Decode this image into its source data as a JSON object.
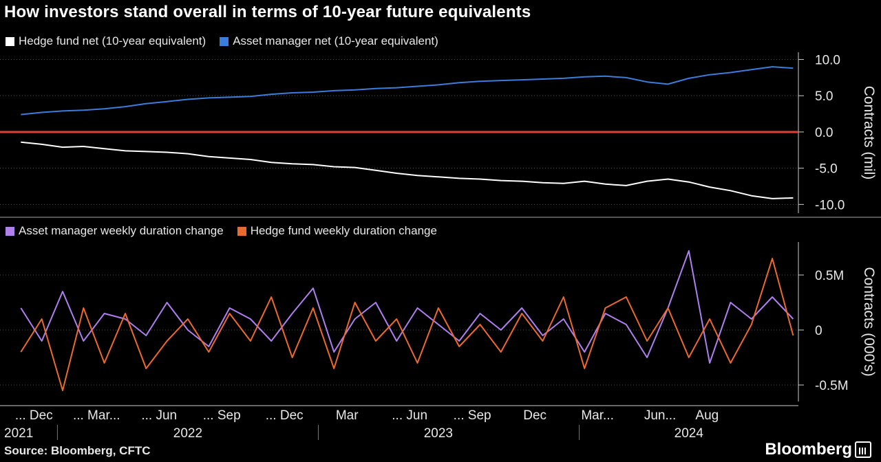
{
  "title": "How investors stand overall in terms of 10-year future equivalents",
  "source": "Source: Bloomberg, CFTC",
  "brand": "Bloomberg",
  "colors": {
    "background": "#000000",
    "hedge_net": "#ffffff",
    "asset_net": "#3b7ddd",
    "zero_line": "#e0403a",
    "asset_weekly": "#b07ff0",
    "hedge_weekly": "#ee6a2c",
    "axis": "#cfcfcf"
  },
  "chart_data": [
    {
      "type": "line",
      "title": "How investors stand overall in terms of 10-year future equivalents",
      "ylabel": "Contracts (mil)",
      "ylim": [
        -11.2,
        11
      ],
      "yticks": [
        10,
        5,
        0,
        -5,
        -10
      ],
      "ytick_labels": [
        "10.0",
        "5.0",
        "0.0",
        "-5.0",
        "-10.0"
      ],
      "zero_line": 0,
      "series": [
        {
          "name": "Hedge fund net (10-year equivalent)",
          "x": [
            0,
            4,
            8,
            12,
            16,
            20,
            24,
            28,
            32,
            36,
            40,
            44,
            48,
            52,
            56,
            60,
            64,
            68,
            72,
            76,
            80,
            84,
            88,
            92,
            96,
            100,
            104,
            108,
            112,
            116,
            120,
            124,
            128,
            132,
            136,
            140,
            144,
            148
          ],
          "values": [
            -1.4,
            -1.7,
            -2.1,
            -2.0,
            -2.3,
            -2.6,
            -2.7,
            -2.8,
            -3.0,
            -3.4,
            -3.6,
            -3.8,
            -4.2,
            -4.4,
            -4.5,
            -4.8,
            -4.9,
            -5.3,
            -5.7,
            -6.0,
            -6.2,
            -6.4,
            -6.5,
            -6.7,
            -6.8,
            -7.0,
            -7.1,
            -6.8,
            -7.2,
            -7.4,
            -6.8,
            -6.5,
            -6.9,
            -7.6,
            -8.1,
            -8.8,
            -9.2,
            -9.1
          ]
        },
        {
          "name": "Asset manager net (10-year equivalent)",
          "x": [
            0,
            4,
            8,
            12,
            16,
            20,
            24,
            28,
            32,
            36,
            40,
            44,
            48,
            52,
            56,
            60,
            64,
            68,
            72,
            76,
            80,
            84,
            88,
            92,
            96,
            100,
            104,
            108,
            112,
            116,
            120,
            124,
            128,
            132,
            136,
            140,
            144,
            148
          ],
          "values": [
            2.4,
            2.7,
            2.9,
            3.0,
            3.2,
            3.5,
            3.9,
            4.2,
            4.5,
            4.7,
            4.8,
            4.9,
            5.2,
            5.4,
            5.5,
            5.7,
            5.8,
            6.0,
            6.1,
            6.3,
            6.5,
            6.8,
            7.0,
            7.1,
            7.2,
            7.3,
            7.4,
            7.6,
            7.7,
            7.5,
            6.9,
            6.6,
            7.4,
            7.9,
            8.2,
            8.6,
            9.0,
            8.8
          ]
        }
      ]
    },
    {
      "type": "line",
      "ylabel": "Contracts (000's)",
      "ylim": [
        -0.65,
        0.8
      ],
      "yticks": [
        0.5,
        0,
        -0.5
      ],
      "ytick_labels": [
        "0.5M",
        "0",
        "-0.5M"
      ],
      "series": [
        {
          "name": "Asset manager weekly duration change",
          "x": [
            0,
            4,
            8,
            12,
            16,
            20,
            24,
            28,
            32,
            36,
            40,
            44,
            48,
            52,
            56,
            60,
            64,
            68,
            72,
            76,
            80,
            84,
            88,
            92,
            96,
            100,
            104,
            108,
            112,
            116,
            120,
            124,
            128,
            132,
            136,
            140,
            144,
            148
          ],
          "values": [
            0.2,
            -0.1,
            0.35,
            -0.1,
            0.15,
            0.1,
            -0.05,
            0.25,
            0.0,
            -0.15,
            0.2,
            0.1,
            -0.1,
            0.15,
            0.38,
            -0.2,
            0.1,
            0.25,
            -0.1,
            0.2,
            0.05,
            -0.1,
            0.15,
            0.0,
            0.2,
            -0.05,
            0.1,
            -0.2,
            0.15,
            0.05,
            -0.25,
            0.2,
            0.72,
            -0.3,
            0.25,
            0.1,
            0.3,
            0.1
          ]
        },
        {
          "name": "Hedge fund weekly duration change",
          "x": [
            0,
            4,
            8,
            12,
            16,
            20,
            24,
            28,
            32,
            36,
            40,
            44,
            48,
            52,
            56,
            60,
            64,
            68,
            72,
            76,
            80,
            84,
            88,
            92,
            96,
            100,
            104,
            108,
            112,
            116,
            120,
            124,
            128,
            132,
            136,
            140,
            144,
            148
          ],
          "values": [
            -0.2,
            0.1,
            -0.55,
            0.2,
            -0.3,
            0.15,
            -0.35,
            -0.1,
            0.1,
            -0.2,
            0.15,
            -0.1,
            0.3,
            -0.25,
            0.2,
            -0.35,
            0.25,
            -0.1,
            0.1,
            -0.3,
            0.2,
            -0.15,
            0.05,
            -0.2,
            0.15,
            -0.1,
            0.3,
            -0.35,
            0.2,
            0.3,
            -0.1,
            0.2,
            -0.25,
            0.1,
            -0.3,
            0.05,
            0.65,
            -0.05
          ]
        }
      ]
    }
  ],
  "x_axis": {
    "month_labels": [
      "... Dec",
      "... Mar...",
      "... Jun",
      "... Sep",
      "... Dec",
      "Mar",
      "... Jun",
      "... Sep",
      "Dec",
      "Mar...",
      "Jun...",
      "Aug"
    ],
    "month_x": [
      2.5,
      14.5,
      26.5,
      38.5,
      50.5,
      62.5,
      74.5,
      86.5,
      98.5,
      110.5,
      122.5,
      131.5
    ],
    "year_labels": [
      "2021",
      "2022",
      "2023",
      "2024"
    ],
    "year_x": [
      -2,
      32,
      80,
      128
    ],
    "year_dividers": [
      7,
      57,
      107
    ],
    "x_range": [
      -4,
      149
    ]
  }
}
